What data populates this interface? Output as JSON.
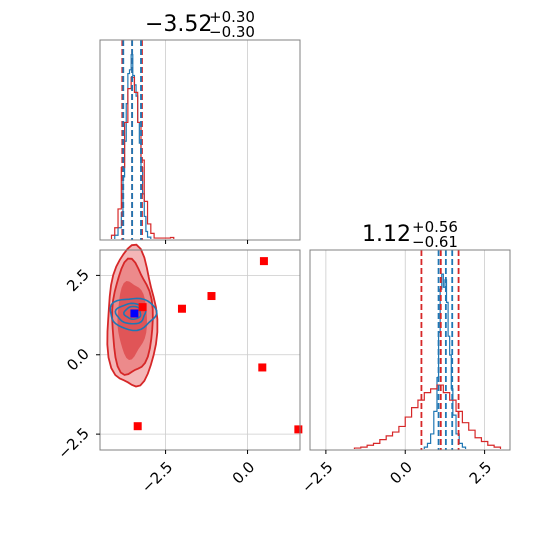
{
  "chart_data": [
    {
      "panel": "marginal-1",
      "type": "histogram",
      "title": {
        "value": "−3.52",
        "plus": "+0.30",
        "minus": "−0.30"
      },
      "xlim": [
        -4.5,
        1.6
      ],
      "grid": true,
      "series": [
        {
          "name": "",
          "color": "#1f77b4",
          "bin_edges": [
            -4.05,
            -3.95,
            -3.85,
            -3.8,
            -3.75,
            -3.7,
            -3.65,
            -3.6,
            -3.55,
            -3.5,
            -3.45,
            -3.4,
            -3.35,
            -3.3,
            -3.25,
            -3.2,
            -3.15,
            -3.1,
            -3.05,
            -2.95
          ],
          "counts": [
            0.02,
            0.06,
            0.14,
            0.33,
            0.52,
            0.72,
            0.88,
            0.9,
            0.98,
            0.87,
            0.82,
            0.76,
            0.62,
            0.51,
            0.38,
            0.24,
            0.12,
            0.04,
            0.01
          ]
        },
        {
          "name": "",
          "color": "#d62728",
          "bin_edges": [
            -4.15,
            -4.05,
            -3.95,
            -3.85,
            -3.75,
            -3.65,
            -3.55,
            -3.45,
            -3.35,
            -3.25,
            -3.15,
            -3.05,
            -2.95,
            -2.85,
            -2.35,
            -2.25
          ],
          "counts": [
            0.02,
            0.06,
            0.16,
            0.38,
            0.62,
            0.8,
            0.86,
            0.78,
            0.62,
            0.42,
            0.2,
            0.08,
            0.03,
            0.005,
            0.008
          ]
        }
      ],
      "quantile_lines": [
        {
          "value": -3.82,
          "color": "#d62728"
        },
        {
          "value": -3.52,
          "color": "#d62728"
        },
        {
          "value": -3.22,
          "color": "#d62728"
        },
        {
          "value": -3.79,
          "color": "#1f77b4"
        },
        {
          "value": -3.52,
          "color": "#1f77b4"
        },
        {
          "value": -3.25,
          "color": "#1f77b4"
        }
      ]
    },
    {
      "panel": "joint",
      "type": "scatter",
      "xlim": [
        -4.5,
        1.6
      ],
      "ylim": [
        -3.0,
        3.3
      ],
      "x_ticks": [
        "−2.5",
        "0.0"
      ],
      "x_tick_values": [
        -2.5,
        0.0
      ],
      "y_ticks": [
        "2.5",
        "0.0",
        "−2.5"
      ],
      "y_tick_values": [
        2.5,
        0.0,
        -2.5
      ],
      "grid": true,
      "points": [
        {
          "x": 0.5,
          "y": 2.95,
          "color": "#ff0000"
        },
        {
          "x": -1.1,
          "y": 1.85,
          "color": "#ff0000"
        },
        {
          "x": -2.0,
          "y": 1.45,
          "color": "#ff0000"
        },
        {
          "x": -3.2,
          "y": 1.5,
          "color": "#ff0000"
        },
        {
          "x": 0.45,
          "y": -0.4,
          "color": "#ff0000"
        },
        {
          "x": -3.35,
          "y": -2.25,
          "color": "#ff0000"
        },
        {
          "x": 1.55,
          "y": -2.35,
          "color": "#ff0000"
        },
        {
          "x": -3.45,
          "y": 1.3,
          "color": "#0000ff"
        }
      ],
      "contours": [
        {
          "series": "red",
          "color": "#d62728",
          "cx": -3.53,
          "cy": 1.12,
          "rx": 0.75,
          "ry": 2.2,
          "fill": "#f4b6b7",
          "outline": true
        },
        {
          "series": "red",
          "color": "#d62728",
          "cx": -3.53,
          "cy": 1.12,
          "rx": 0.62,
          "ry": 1.78,
          "fill": "#ec8a8b",
          "outline": true
        },
        {
          "series": "red",
          "color": "#d62728",
          "cx": -3.53,
          "cy": 1.12,
          "rx": 0.45,
          "ry": 1.2,
          "fill": "#e05557",
          "outline": false
        },
        {
          "series": "blue",
          "color": "#1f77b4",
          "cx": -3.5,
          "cy": 1.3,
          "rx": 0.7,
          "ry": 0.5,
          "fill": "none",
          "outline": true
        },
        {
          "series": "blue",
          "color": "#1f77b4",
          "cx": -3.55,
          "cy": 1.3,
          "rx": 0.45,
          "ry": 0.32,
          "fill": "none",
          "outline": true
        },
        {
          "series": "blue",
          "color": "#1f77b4",
          "cx": -3.5,
          "cy": 1.32,
          "rx": 0.25,
          "ry": 0.2,
          "fill": "none",
          "outline": true
        }
      ]
    },
    {
      "panel": "marginal-2",
      "type": "histogram",
      "title": {
        "value": "1.12",
        "plus": "+0.56",
        "minus": "−0.61"
      },
      "xlim": [
        -3.0,
        3.3
      ],
      "x_ticks": [
        "−2.5",
        "0.0",
        "2.5"
      ],
      "x_tick_values": [
        -2.5,
        0.0,
        2.5
      ],
      "grid": true,
      "series": [
        {
          "name": "",
          "color": "#1f77b4",
          "bin_edges": [
            0.6,
            0.7,
            0.8,
            0.9,
            1.0,
            1.05,
            1.1,
            1.15,
            1.2,
            1.25,
            1.3,
            1.35,
            1.4,
            1.45,
            1.5,
            1.6,
            1.7,
            1.8,
            1.9
          ],
          "counts": [
            0.01,
            0.03,
            0.08,
            0.2,
            0.38,
            0.62,
            0.85,
            0.93,
            0.86,
            0.9,
            0.78,
            0.6,
            0.5,
            0.32,
            0.18,
            0.08,
            0.03,
            0.01
          ]
        },
        {
          "name": "",
          "color": "#d62728",
          "bin_edges": [
            -1.6,
            -1.4,
            -1.2,
            -1.0,
            -0.8,
            -0.6,
            -0.4,
            -0.2,
            0.0,
            0.2,
            0.4,
            0.6,
            0.8,
            1.0,
            1.2,
            1.4,
            1.6,
            1.8,
            2.0,
            2.2,
            2.4,
            2.6,
            2.8,
            3.0
          ],
          "counts": [
            0.005,
            0.01,
            0.02,
            0.03,
            0.05,
            0.07,
            0.09,
            0.12,
            0.17,
            0.22,
            0.26,
            0.3,
            0.32,
            0.34,
            0.3,
            0.26,
            0.2,
            0.14,
            0.1,
            0.06,
            0.04,
            0.02,
            0.01
          ]
        }
      ],
      "quantile_lines": [
        {
          "value": 0.51,
          "color": "#d62728"
        },
        {
          "value": 1.12,
          "color": "#d62728"
        },
        {
          "value": 1.68,
          "color": "#d62728"
        },
        {
          "value": 1.05,
          "color": "#1f77b4"
        },
        {
          "value": 1.28,
          "color": "#1f77b4"
        },
        {
          "value": 1.48,
          "color": "#1f77b4"
        }
      ]
    }
  ]
}
